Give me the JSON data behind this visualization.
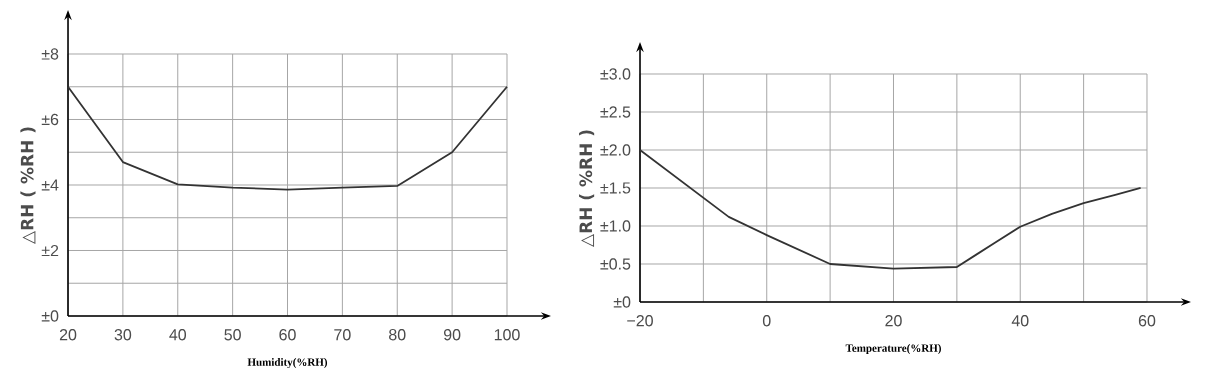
{
  "chart_data": [
    {
      "type": "line",
      "xlabel": "Humidity(%RH)",
      "ylabel": "△RH ( %RH )",
      "grid": true,
      "xlim": [
        20,
        100
      ],
      "ylim": [
        0,
        8
      ],
      "xticks": [
        20,
        30,
        40,
        50,
        60,
        70,
        80,
        90,
        100
      ],
      "yticks": [
        {
          "value": 0,
          "label": "±0"
        },
        {
          "value": 1,
          "label": null
        },
        {
          "value": 2,
          "label": "±2"
        },
        {
          "value": 3,
          "label": null
        },
        {
          "value": 4,
          "label": "±4"
        },
        {
          "value": 5,
          "label": null
        },
        {
          "value": 6,
          "label": "±6"
        },
        {
          "value": 7,
          "label": null
        },
        {
          "value": 8,
          "label": "±8"
        }
      ],
      "x": [
        20,
        30,
        40,
        50,
        60,
        70,
        80,
        90,
        100
      ],
      "values": [
        7.0,
        4.7,
        4.02,
        3.92,
        3.86,
        3.92,
        3.97,
        5.0,
        7.0
      ],
      "color": "#333333"
    },
    {
      "type": "line",
      "xlabel": "Temperature(%RH)",
      "ylabel": "△RH ( %RH )",
      "grid": true,
      "xlim": [
        -20,
        60
      ],
      "ylim": [
        0,
        3
      ],
      "xticks": [
        {
          "value": -20,
          "label": "−20"
        },
        {
          "value": -10,
          "label": null
        },
        0,
        {
          "value": 10,
          "label": null
        },
        20,
        {
          "value": 30,
          "label": null
        },
        40,
        {
          "value": 50,
          "label": null
        },
        60
      ],
      "yticks": [
        {
          "value": 0,
          "label": "±0"
        },
        {
          "value": 0.5,
          "label": "±0.5"
        },
        {
          "value": 1,
          "label": "±1.0"
        },
        {
          "value": 1.5,
          "label": "±1.5"
        },
        {
          "value": 2,
          "label": "±2.0"
        },
        {
          "value": 2.5,
          "label": "±2.5"
        },
        {
          "value": 3,
          "label": "±3.0"
        }
      ],
      "x": [
        -20,
        -6,
        0,
        10,
        20,
        30,
        33,
        36,
        40,
        45,
        50,
        55,
        59
      ],
      "values": [
        2.0,
        1.12,
        0.88,
        0.5,
        0.44,
        0.46,
        0.62,
        0.78,
        0.99,
        1.16,
        1.3,
        1.41,
        1.5
      ],
      "color": "#333333"
    }
  ]
}
